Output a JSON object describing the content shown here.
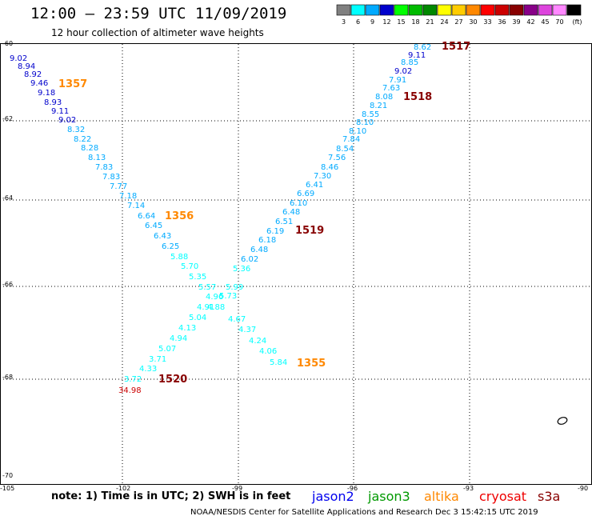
{
  "header": {
    "title": "12:00 — 23:59 UTC 11/09/2019",
    "subtitle": "12 hour collection of altimeter wave heights"
  },
  "colorbar": {
    "labels": [
      "3",
      "6",
      "9",
      "12",
      "15",
      "18",
      "21",
      "24",
      "27",
      "30",
      "33",
      "36",
      "39",
      "42",
      "45",
      "70",
      "(ft)"
    ],
    "colors": [
      "#808080",
      "#00ffff",
      "#00aaff",
      "#0000cc",
      "#00ff00",
      "#00bb00",
      "#008800",
      "#ffff00",
      "#ffcc00",
      "#ff8800",
      "#ff0000",
      "#cc0000",
      "#880000",
      "#880088",
      "#dd44dd",
      "#ff88ff",
      "#000000"
    ]
  },
  "axes": {
    "lat_labels": [
      "-60",
      "-62",
      "-64",
      "-66",
      "-68",
      "-70"
    ],
    "lon_labels": [
      "-105",
      "-102",
      "-99",
      "-96",
      "-93",
      "-90"
    ]
  },
  "passes": [
    {
      "id": "1517",
      "color": "#880000"
    },
    {
      "id": "1518",
      "color": "#880000"
    },
    {
      "id": "1519",
      "color": "#880000"
    },
    {
      "id": "1520",
      "color": "#880000"
    },
    {
      "id": "1357",
      "color": "#ff8800"
    },
    {
      "id": "1356",
      "color": "#ff8800"
    },
    {
      "id": "1355",
      "color": "#ff8800"
    }
  ],
  "observations": [
    {
      "v": "9.02",
      "c": "#0000cc"
    },
    {
      "v": "8.94",
      "c": "#0000cc"
    },
    {
      "v": "8.92",
      "c": "#0000cc"
    },
    {
      "v": "9.46",
      "c": "#0000cc"
    },
    {
      "v": "9.18",
      "c": "#0000cc"
    },
    {
      "v": "8.93",
      "c": "#0000cc"
    },
    {
      "v": "9.11",
      "c": "#0000cc"
    },
    {
      "v": "9.02",
      "c": "#0000cc"
    },
    {
      "v": "8.32",
      "c": "#00aaff"
    },
    {
      "v": "8.22",
      "c": "#00aaff"
    },
    {
      "v": "8.28",
      "c": "#00aaff"
    },
    {
      "v": "8.13",
      "c": "#00aaff"
    },
    {
      "v": "7.83",
      "c": "#00aaff"
    },
    {
      "v": "7.83",
      "c": "#00aaff"
    },
    {
      "v": "7.77",
      "c": "#00aaff"
    },
    {
      "v": "7.18",
      "c": "#00aaff"
    },
    {
      "v": "7.14",
      "c": "#00aaff"
    },
    {
      "v": "6.64",
      "c": "#00aaff"
    },
    {
      "v": "6.45",
      "c": "#00aaff"
    },
    {
      "v": "6.43",
      "c": "#00aaff"
    },
    {
      "v": "6.25",
      "c": "#00aaff"
    },
    {
      "v": "5.88",
      "c": "#00ffff"
    },
    {
      "v": "5.70",
      "c": "#00ffff"
    },
    {
      "v": "5.35",
      "c": "#00ffff"
    },
    {
      "v": "5.57",
      "c": "#00ffff"
    },
    {
      "v": "4.96",
      "c": "#00ffff"
    },
    {
      "v": "4.91",
      "c": "#00ffff"
    },
    {
      "v": "4.67",
      "c": "#00ffff"
    },
    {
      "v": "4.37",
      "c": "#00ffff"
    },
    {
      "v": "4.24",
      "c": "#00ffff"
    },
    {
      "v": "4.06",
      "c": "#00ffff"
    },
    {
      "v": "5.84",
      "c": "#00ffff"
    },
    {
      "v": "8.62",
      "c": "#00aaff"
    },
    {
      "v": "9.11",
      "c": "#0000cc"
    },
    {
      "v": "8.85",
      "c": "#00aaff"
    },
    {
      "v": "9.02",
      "c": "#0000cc"
    },
    {
      "v": "7.91",
      "c": "#00aaff"
    },
    {
      "v": "7.63",
      "c": "#00aaff"
    },
    {
      "v": "8.08",
      "c": "#00aaff"
    },
    {
      "v": "8.21",
      "c": "#00aaff"
    },
    {
      "v": "8.55",
      "c": "#00aaff"
    },
    {
      "v": "8.10",
      "c": "#00aaff"
    },
    {
      "v": "8.10",
      "c": "#00aaff"
    },
    {
      "v": "7.84",
      "c": "#00aaff"
    },
    {
      "v": "8.54",
      "c": "#00aaff"
    },
    {
      "v": "7.56",
      "c": "#00aaff"
    },
    {
      "v": "8.46",
      "c": "#00aaff"
    },
    {
      "v": "7.30",
      "c": "#00aaff"
    },
    {
      "v": "6.41",
      "c": "#00aaff"
    },
    {
      "v": "6.69",
      "c": "#00aaff"
    },
    {
      "v": "6.10",
      "c": "#00aaff"
    },
    {
      "v": "6.48",
      "c": "#00aaff"
    },
    {
      "v": "6.51",
      "c": "#00aaff"
    },
    {
      "v": "6.19",
      "c": "#00aaff"
    },
    {
      "v": "6.18",
      "c": "#00aaff"
    },
    {
      "v": "6.48",
      "c": "#00aaff"
    },
    {
      "v": "6.02",
      "c": "#00aaff"
    },
    {
      "v": "5.36",
      "c": "#00ffff"
    },
    {
      "v": "5.99",
      "c": "#00ffff"
    },
    {
      "v": "5.73",
      "c": "#00ffff"
    },
    {
      "v": "4.88",
      "c": "#00ffff"
    },
    {
      "v": "5.04",
      "c": "#00ffff"
    },
    {
      "v": "4.13",
      "c": "#00ffff"
    },
    {
      "v": "4.94",
      "c": "#00ffff"
    },
    {
      "v": "5.07",
      "c": "#00ffff"
    },
    {
      "v": "3.71",
      "c": "#00ffff"
    },
    {
      "v": "4.33",
      "c": "#00ffff"
    },
    {
      "v": "3.72",
      "c": "#00ffff"
    },
    {
      "v": "34.98",
      "c": "#cc0000"
    },
    {
      "v": "3.71",
      "c": "#00ffff"
    }
  ],
  "footer": {
    "note": "note: 1) Time is in UTC; 2) SWH is in feet",
    "missions": [
      {
        "name": "jason2",
        "color": "#0000ee"
      },
      {
        "name": "jason3",
        "color": "#009900"
      },
      {
        "name": "altika",
        "color": "#ff8800"
      },
      {
        "name": "cryosat",
        "color": "#ee0000"
      },
      {
        "name": "s3a",
        "color": "#880000"
      }
    ],
    "credit": "NOAA/NESDIS Center for Satellite Applications and Research    Dec  3 15:42:15 UTC 2019"
  }
}
